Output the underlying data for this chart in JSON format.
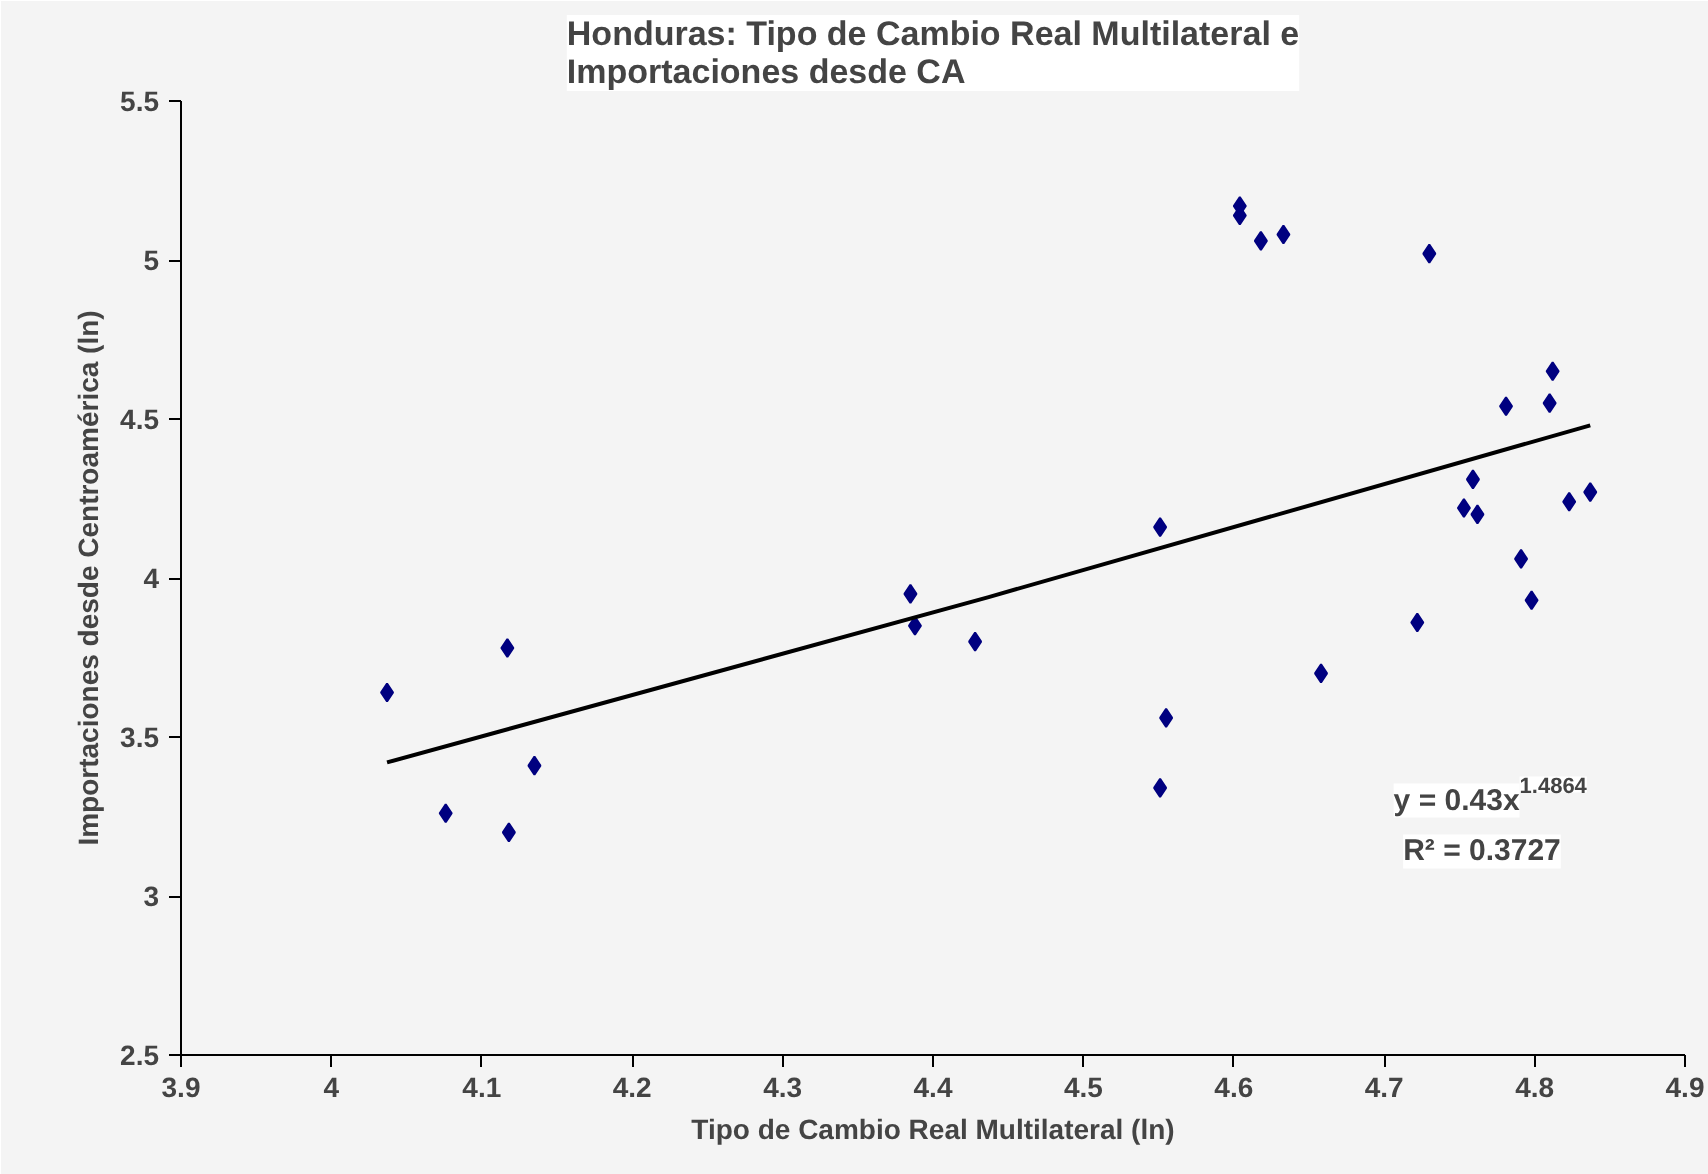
{
  "chart_data": {
    "type": "scatter",
    "title": "Honduras: Tipo de Cambio Real Multilateral e\nImportaciones desde CA",
    "xlabel": "Tipo de Cambio Real Multilateral (ln)",
    "ylabel": "Importaciones desde Centroamérica (ln)",
    "xlim": [
      3.9,
      4.9
    ],
    "xticks": [
      3.9,
      4,
      4.1,
      4.2,
      4.3,
      4.4,
      4.5,
      4.6,
      4.7,
      4.8,
      4.9
    ],
    "ylim": [
      2.5,
      5.5
    ],
    "yticks": [
      2.5,
      3,
      3.5,
      4,
      4.5,
      5,
      5.5
    ],
    "grid": false,
    "marker": "diamond",
    "series": [
      {
        "color": "#000080",
        "x": [
          4.037,
          4.076,
          4.117,
          4.118,
          4.135,
          4.385,
          4.388,
          4.428,
          4.551,
          4.555,
          4.551,
          4.604,
          4.604,
          4.618,
          4.633,
          4.658,
          4.722,
          4.73,
          4.753,
          4.759,
          4.762,
          4.781,
          4.791,
          4.798,
          4.81,
          4.812,
          4.823,
          4.837
        ],
        "values": [
          3.64,
          3.26,
          3.78,
          3.2,
          3.41,
          3.95,
          3.85,
          3.8,
          4.16,
          3.56,
          3.34,
          5.17,
          5.14,
          5.06,
          5.08,
          3.7,
          3.86,
          5.02,
          4.22,
          4.31,
          4.2,
          4.54,
          4.06,
          3.93,
          4.55,
          4.65,
          4.24,
          4.27
        ]
      },
      {
        "type": "line",
        "color": "#000000",
        "marker": "none",
        "x": [
          4.037,
          4.437,
          4.837
        ],
        "values": [
          3.42,
          3.94,
          4.48
        ]
      }
    ],
    "annotations": [
      "y = 0.43x$^{1.4864}$",
      "R² = 0.3727"
    ]
  }
}
